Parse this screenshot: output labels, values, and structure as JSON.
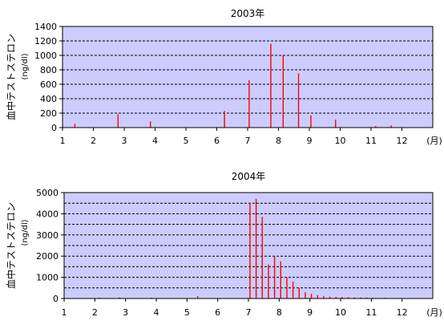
{
  "chart_data": [
    {
      "type": "bar",
      "title": "2003年",
      "ylabel": "血中テストステロン",
      "yunit": "(ng/dl)",
      "xunit": "(月)",
      "xlim": [
        1,
        13
      ],
      "ylim": [
        0,
        1400
      ],
      "yticks": [
        0,
        200,
        400,
        600,
        800,
        1000,
        1200,
        1400
      ],
      "xticks": [
        1,
        2,
        3,
        4,
        5,
        6,
        7,
        8,
        9,
        10,
        11,
        12
      ],
      "grid": true,
      "bar_color": "#ff0000",
      "plot_background": "#ccccff",
      "points": [
        {
          "x": 1.4,
          "y": 50
        },
        {
          "x": 2.8,
          "y": 185
        },
        {
          "x": 3.85,
          "y": 85
        },
        {
          "x": 6.25,
          "y": 230
        },
        {
          "x": 7.05,
          "y": 655
        },
        {
          "x": 7.75,
          "y": 1160
        },
        {
          "x": 8.15,
          "y": 1000
        },
        {
          "x": 8.65,
          "y": 750
        },
        {
          "x": 9.05,
          "y": 170
        },
        {
          "x": 9.85,
          "y": 110
        },
        {
          "x": 11.15,
          "y": 20
        },
        {
          "x": 11.65,
          "y": 30
        }
      ]
    },
    {
      "type": "bar",
      "title": "2004年",
      "ylabel": "血中テストステロン",
      "yunit": "(ng/dl)",
      "xunit": "(月)",
      "xlim": [
        1,
        13
      ],
      "ylim": [
        0,
        5000
      ],
      "yticks": [
        0,
        1000,
        2000,
        3000,
        4000,
        5000
      ],
      "xticks": [
        1,
        2,
        3,
        4,
        5,
        6,
        7,
        8,
        9,
        10,
        11,
        12
      ],
      "grid": true,
      "bar_color": "#ff0000",
      "plot_background": "#ccccff",
      "points": [
        {
          "x": 2.15,
          "y": 40
        },
        {
          "x": 2.8,
          "y": 50
        },
        {
          "x": 3.85,
          "y": 40
        },
        {
          "x": 5.35,
          "y": 110
        },
        {
          "x": 7.05,
          "y": 4500
        },
        {
          "x": 7.25,
          "y": 4700
        },
        {
          "x": 7.45,
          "y": 3850
        },
        {
          "x": 7.65,
          "y": 1600
        },
        {
          "x": 7.85,
          "y": 2000
        },
        {
          "x": 8.05,
          "y": 1750
        },
        {
          "x": 8.25,
          "y": 1000
        },
        {
          "x": 8.45,
          "y": 800
        },
        {
          "x": 8.65,
          "y": 500
        },
        {
          "x": 8.85,
          "y": 300
        },
        {
          "x": 9.05,
          "y": 220
        },
        {
          "x": 9.25,
          "y": 160
        },
        {
          "x": 9.45,
          "y": 120
        },
        {
          "x": 9.65,
          "y": 90
        },
        {
          "x": 9.85,
          "y": 80
        },
        {
          "x": 10.05,
          "y": 70
        },
        {
          "x": 10.25,
          "y": 60
        },
        {
          "x": 10.45,
          "y": 55
        },
        {
          "x": 10.65,
          "y": 50
        },
        {
          "x": 10.85,
          "y": 45
        },
        {
          "x": 11.05,
          "y": 40
        },
        {
          "x": 11.45,
          "y": 35
        }
      ]
    }
  ]
}
